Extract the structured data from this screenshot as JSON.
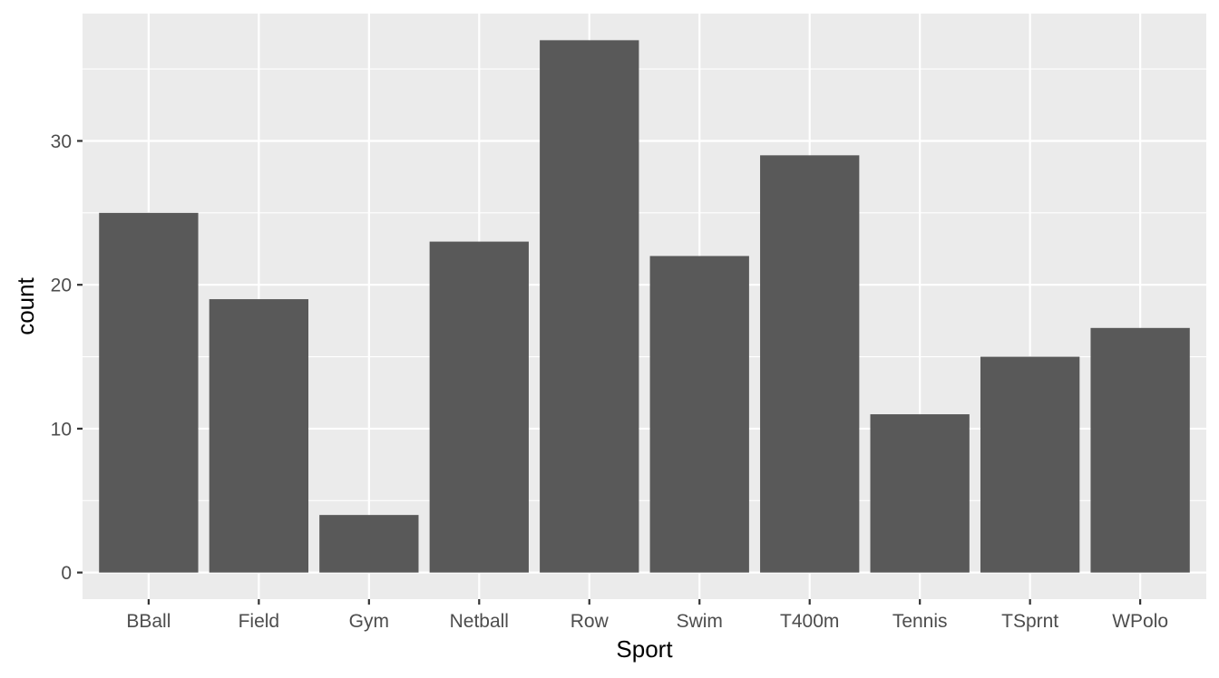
{
  "chart_data": {
    "type": "bar",
    "xlabel": "Sport",
    "ylabel": "count",
    "categories": [
      "BBall",
      "Field",
      "Gym",
      "Netball",
      "Row",
      "Swim",
      "T400m",
      "Tennis",
      "TSprnt",
      "WPolo"
    ],
    "values": [
      25,
      19,
      4,
      23,
      37,
      22,
      29,
      11,
      15,
      17
    ],
    "ylim": [
      -1.85,
      38.85
    ],
    "y_ticks": [
      0,
      10,
      20,
      30
    ],
    "y_tick_labels": [
      "0",
      "10",
      "20",
      "30"
    ],
    "grid": true,
    "legend": "none",
    "colors": {
      "bar": "#595959",
      "panel": "#EBEBEB",
      "grid_major": "#FFFFFF",
      "tick_text": "#4D4D4D",
      "tick_mark": "#333333"
    }
  }
}
